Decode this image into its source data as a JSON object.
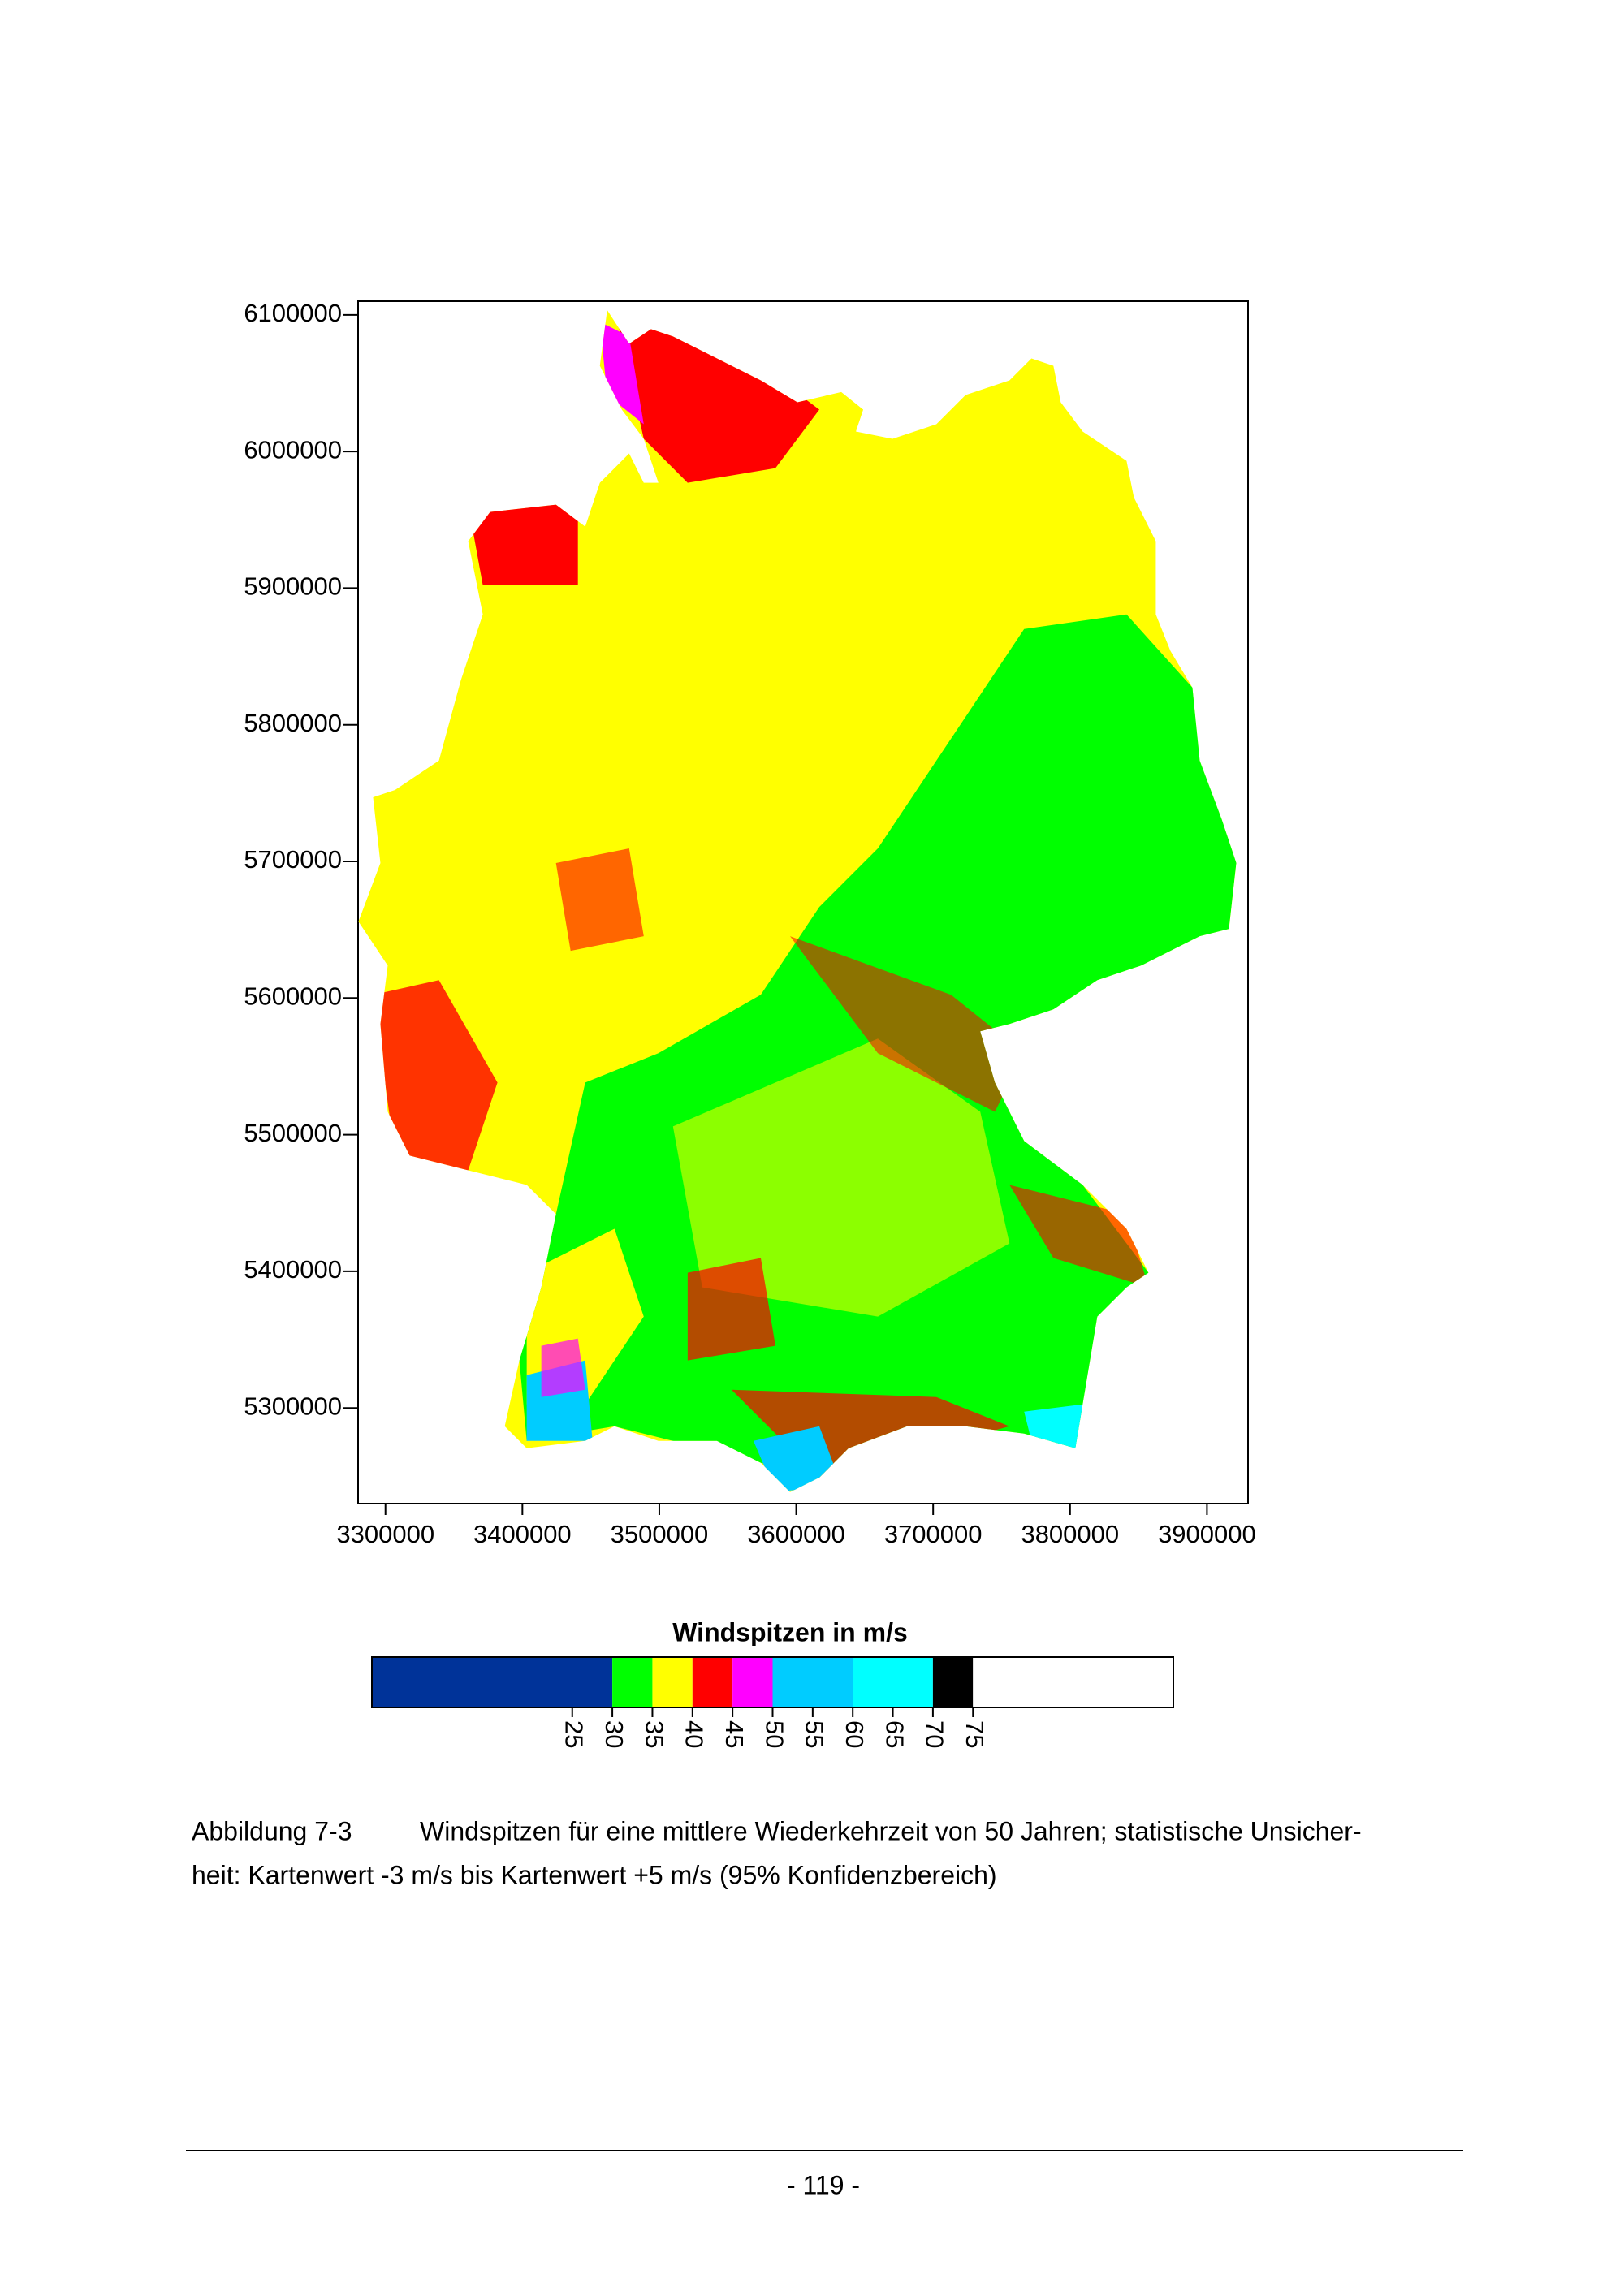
{
  "chart_data": [
    {
      "type": "map",
      "xlim": [
        3280000,
        3930000
      ],
      "ylim": [
        5230000,
        6110000
      ],
      "xticks": [
        3300000,
        3400000,
        3500000,
        3600000,
        3700000,
        3800000,
        3900000
      ],
      "yticks": [
        5300000,
        5400000,
        5500000,
        5600000,
        5700000,
        5800000,
        5900000,
        6000000,
        6100000
      ]
    },
    {
      "type": "colorbar",
      "title": "Windspitzen in m/s",
      "xlim": [
        0,
        100
      ],
      "xticks": [
        25,
        30,
        35,
        40,
        45,
        50,
        55,
        60,
        65,
        70,
        75
      ],
      "bins": [
        0,
        30,
        35,
        40,
        45,
        50,
        60,
        70,
        75,
        100
      ],
      "colors": [
        "#003399",
        "#00ff00",
        "#ffff00",
        "#ff0000",
        "#ff00ff",
        "#00ccff",
        "#00ffff",
        "#000000",
        "#ffffff"
      ]
    }
  ],
  "caption": {
    "label": "Abbildung 7-3",
    "lines": [
      "Windspitzen für eine mittlere Wiederkehrzeit von 50 Jahren; statistische Unsicher-",
      "heit: Kartenwert -3 m/s bis Kartenwert +5 m/s (95% Konfidenzbereich)"
    ]
  },
  "page_number": "- 119 -"
}
